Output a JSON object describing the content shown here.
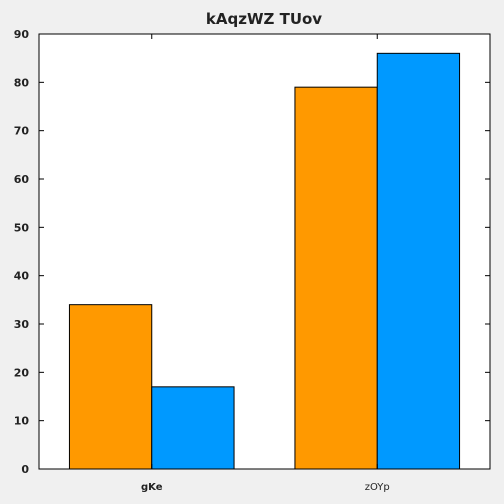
{
  "chart_data": {
    "type": "bar",
    "title": "kAqzWZ TUov",
    "xlabel": "",
    "ylabel": "",
    "categories": [
      "gKe",
      "zOYp"
    ],
    "category_label_bold": [
      true,
      false
    ],
    "series": [
      {
        "color": "#ff9900",
        "values": [
          34,
          79
        ]
      },
      {
        "color": "#0099ff",
        "values": [
          17,
          86
        ]
      }
    ],
    "ylim": [
      0,
      90
    ],
    "yticks": [
      0,
      10,
      20,
      30,
      40,
      50,
      60,
      70,
      80,
      90
    ],
    "grid": false,
    "legend": "none",
    "background": "#f0f0f0",
    "plot_background": "#ffffff"
  }
}
